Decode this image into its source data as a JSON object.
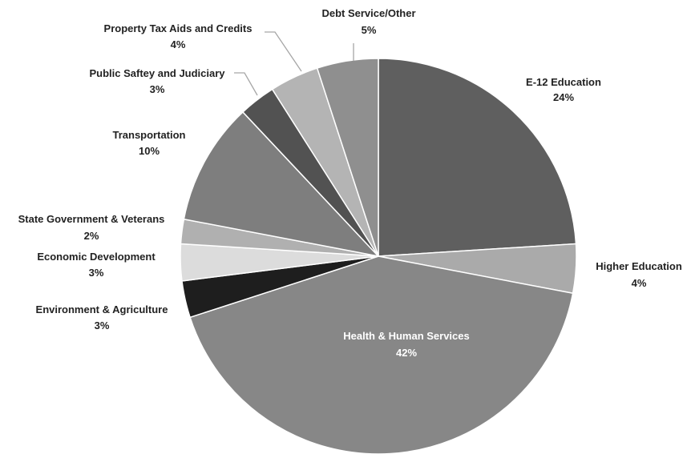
{
  "chart_data": {
    "type": "pie",
    "title": "",
    "start_angle_deg": 0,
    "direction": "clockwise",
    "slices": [
      {
        "name": "E-12 Education",
        "value": 24,
        "label": "24%",
        "color": "#5f5f5f"
      },
      {
        "name": "Higher Education",
        "value": 4,
        "label": "4%",
        "color": "#aaaaaa"
      },
      {
        "name": "Health & Human Services",
        "value": 42,
        "label": "42%",
        "color": "#878787"
      },
      {
        "name": "Environment & Agriculture",
        "value": 3,
        "label": "3%",
        "color": "#1e1e1e"
      },
      {
        "name": "Economic Development",
        "value": 3,
        "label": "3%",
        "color": "#dcdcdc"
      },
      {
        "name": "State Government & Veterans",
        "value": 2,
        "label": "2%",
        "color": "#b0b0b0"
      },
      {
        "name": "Transportation",
        "value": 10,
        "label": "10%",
        "color": "#7e7e7e"
      },
      {
        "name": "Public Saftey and Judiciary",
        "value": 3,
        "label": "3%",
        "color": "#525252"
      },
      {
        "name": "Property Tax Aids and Credits",
        "value": 4,
        "label": "4%",
        "color": "#b4b4b4"
      },
      {
        "name": "Debt Service/Other",
        "value": 5,
        "label": "5%",
        "color": "#8f8f8f"
      }
    ],
    "legend": "none",
    "labels_position": "outside with leader lines; Health & Human Services inside"
  }
}
